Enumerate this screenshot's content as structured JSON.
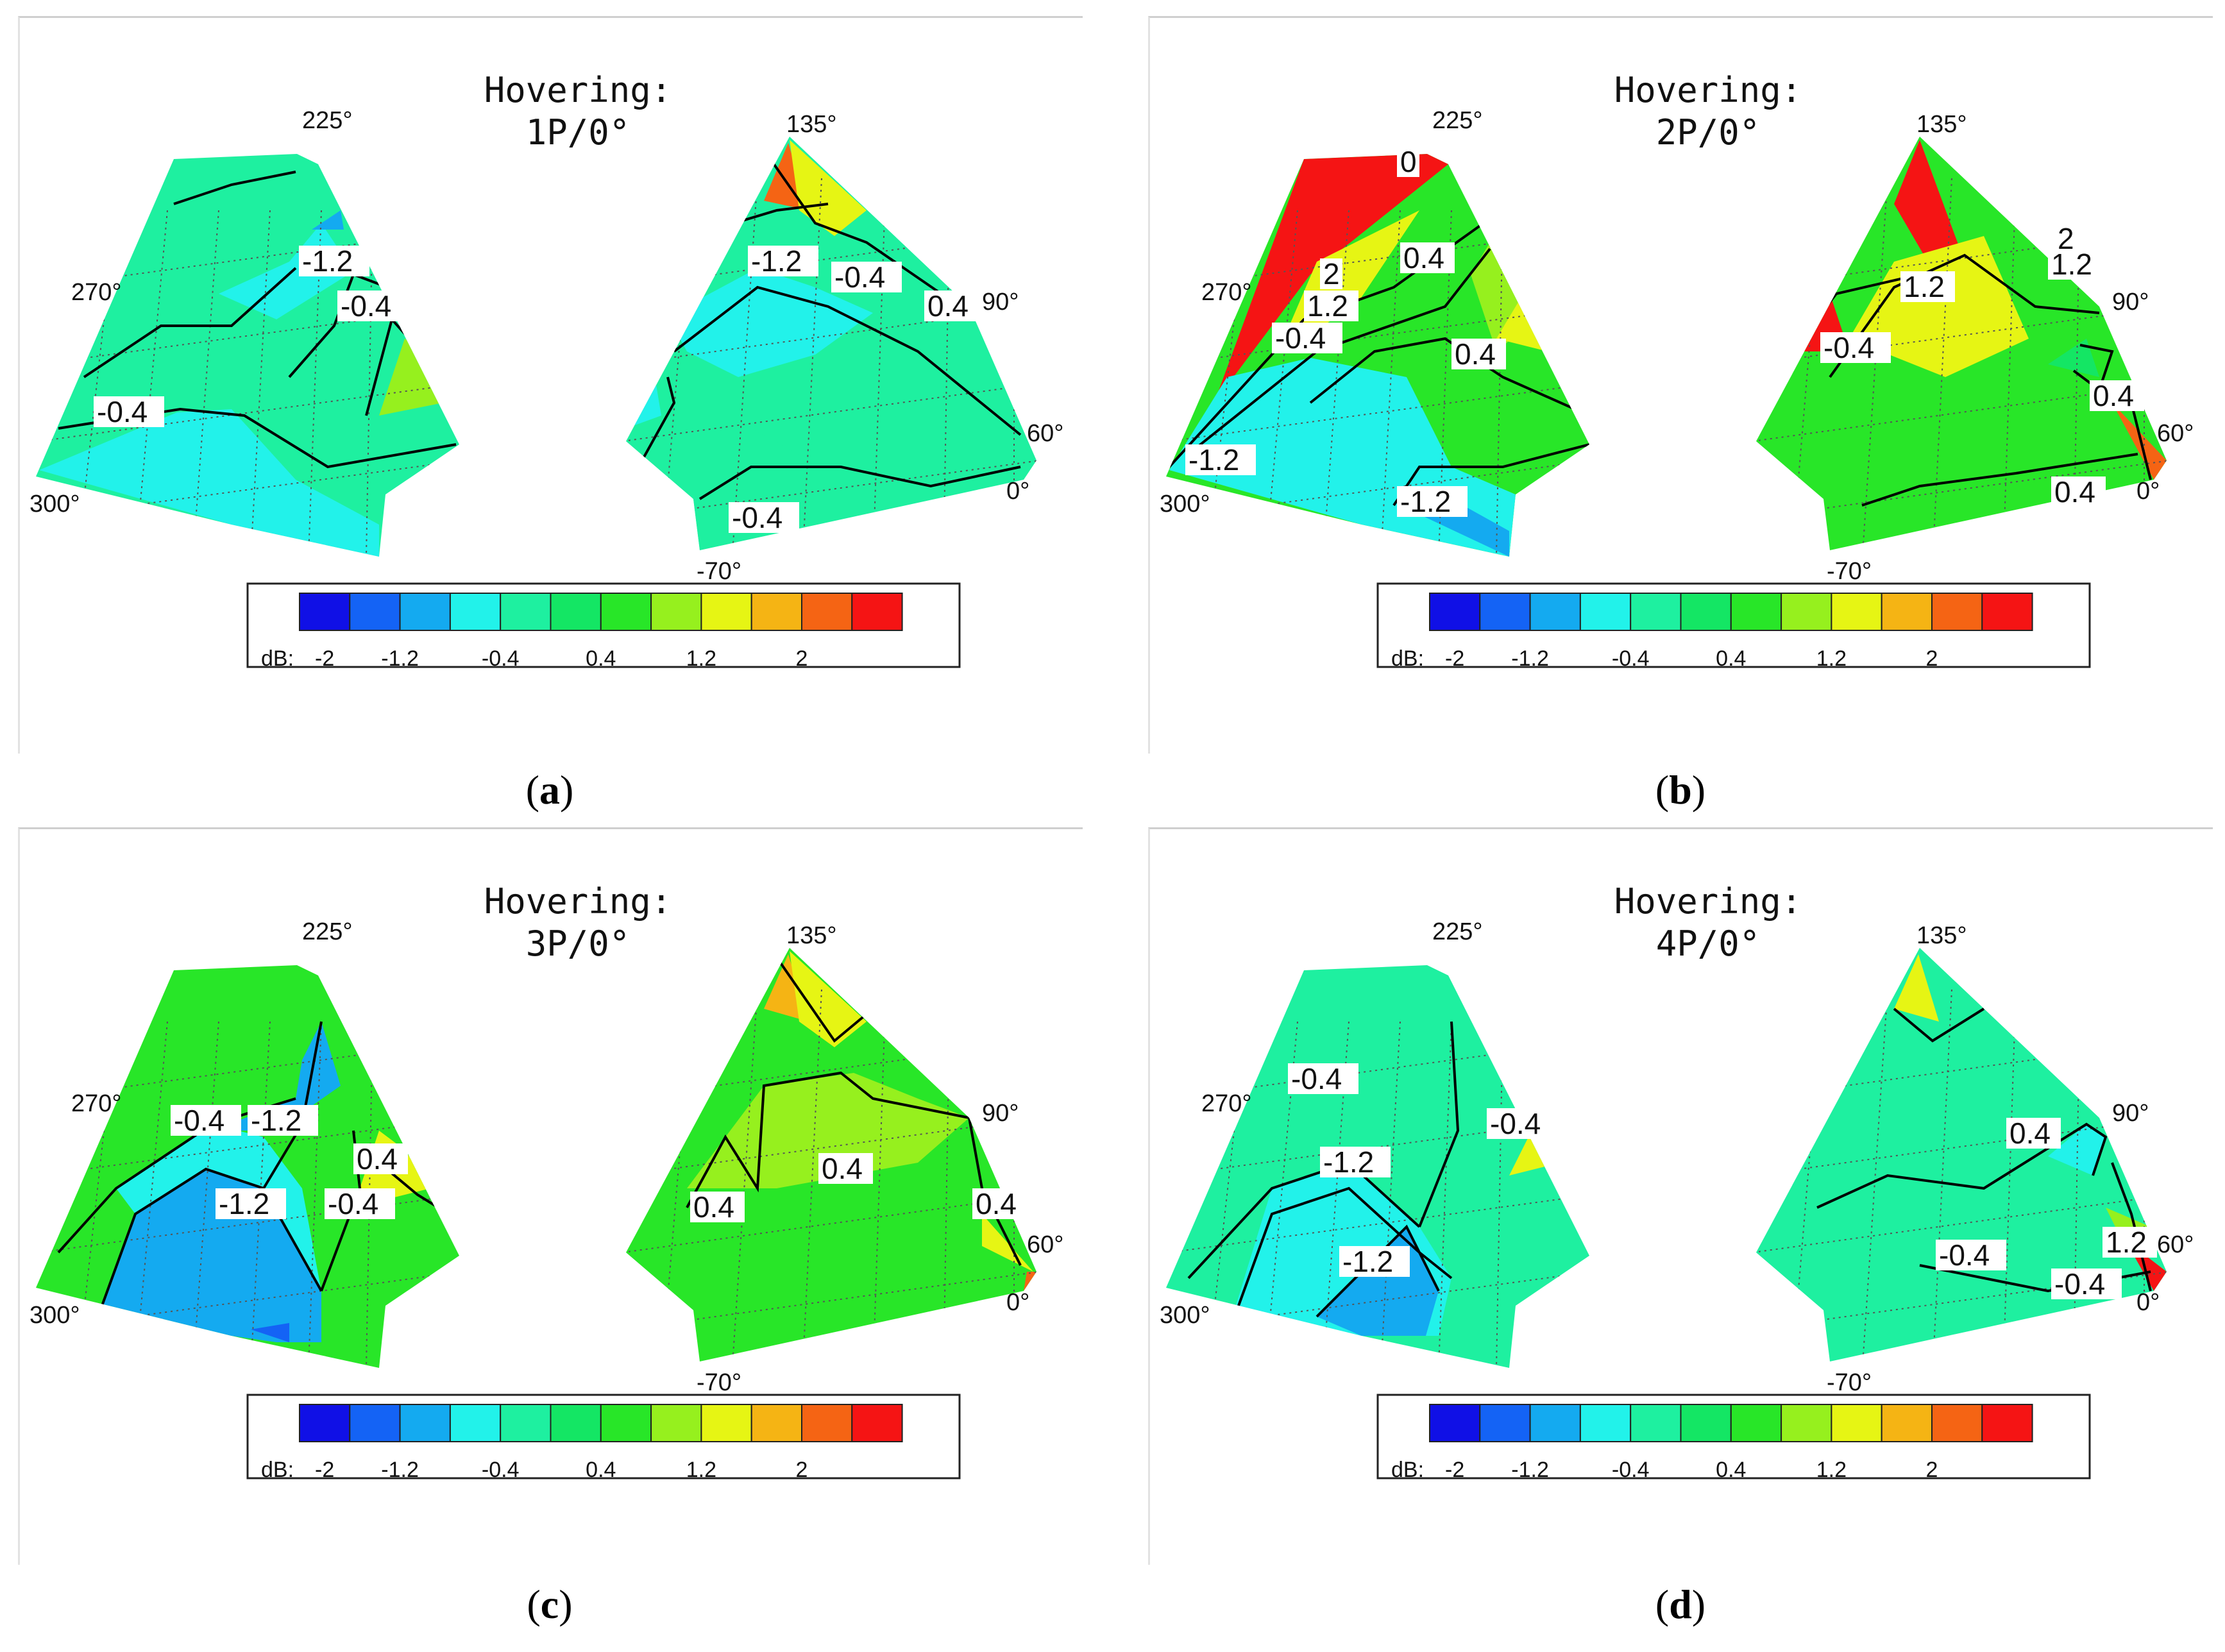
{
  "colorbar": {
    "unit_label": "dB:",
    "tick_labels": [
      "-2",
      "-1.2",
      "-0.4",
      "0.4",
      "1.2",
      "2"
    ],
    "colors": [
      "#1010e6",
      "#1463f5",
      "#14aaf0",
      "#22f2ea",
      "#1ef0a0",
      "#14e664",
      "#28e628",
      "#96f01e",
      "#e6f514",
      "#f5b414",
      "#f56414",
      "#f51414"
    ]
  },
  "chart_data": [
    {
      "type": "contour",
      "caption": "a",
      "title_line1": "Hovering:",
      "title_line2": "1P/0°",
      "left_angles": [
        "225°",
        "270°",
        "300°"
      ],
      "right_angles": [
        "135°",
        "90°",
        "60°",
        "0°",
        "-70°"
      ],
      "contour_labels": [
        "-1.2",
        "-0.4",
        "-0.4",
        "-1.2",
        "-0.4",
        "0.4",
        "-0.4"
      ],
      "dominant_level": "-0.4"
    },
    {
      "type": "contour",
      "caption": "b",
      "title_line1": "Hovering:",
      "title_line2": "2P/0°",
      "left_angles": [
        "225°",
        "270°",
        "300°"
      ],
      "right_angles": [
        "135°",
        "90°",
        "60°",
        "0°",
        "-70°"
      ],
      "contour_labels": [
        "0",
        "2",
        "1.2",
        "0.4",
        "-0.4",
        "0.4",
        "-0.4",
        "-1.2",
        "-1.2",
        "2",
        "1.2",
        "1.2",
        "0.4",
        "0.4"
      ],
      "dominant_level": "0.4"
    },
    {
      "type": "contour",
      "caption": "c",
      "title_line1": "Hovering:",
      "title_line2": "3P/0°",
      "left_angles": [
        "225°",
        "270°",
        "300°"
      ],
      "right_angles": [
        "135°",
        "90°",
        "60°",
        "0°",
        "-70°"
      ],
      "contour_labels": [
        "-0.4",
        "-1.2",
        "0.4",
        "-1.2",
        "-0.4",
        "0.4",
        "0.4",
        "0.4"
      ],
      "dominant_level": "0.4"
    },
    {
      "type": "contour",
      "caption": "d",
      "title_line1": "Hovering:",
      "title_line2": "4P/0°",
      "left_angles": [
        "225°",
        "270°",
        "300°"
      ],
      "right_angles": [
        "135°",
        "90°",
        "60°",
        "0°",
        "-70°"
      ],
      "contour_labels": [
        "-0.4",
        "-0.4",
        "-1.2",
        "-1.2",
        "0.4",
        "1.2",
        "-0.4",
        "-0.4"
      ],
      "dominant_level": "-0.4"
    }
  ]
}
